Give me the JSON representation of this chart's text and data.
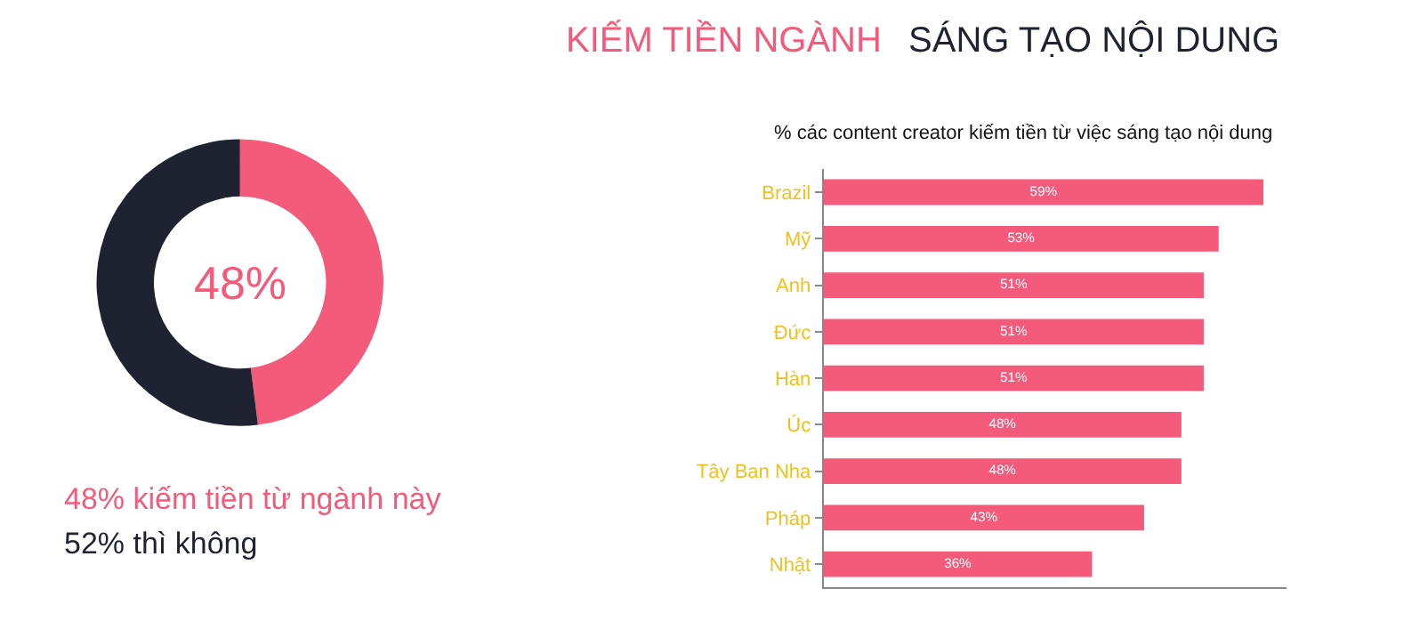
{
  "chart_data": [
    {
      "type": "donut",
      "categories": [
        null,
        null
      ],
      "values": [
        48,
        52
      ],
      "colors": [
        "#f45b7a",
        "#1f2331"
      ],
      "annotations": [
        "KIẾM TIỀN NGÀNH",
        "SÁNG TẠO NỘI DUNG",
        "48%",
        "48% kiếm tiền từ ngành này",
        "52% thì không"
      ]
    },
    {
      "type": "bar",
      "orientation": "horizontal",
      "title": "% các content creator kiếm tiền từ việc sáng tạo nội dung",
      "categories": [
        "Brazil",
        "Mỹ",
        "Anh",
        "Đức",
        "Hàn",
        "Úc",
        "Tây Ban Nha",
        "Pháp",
        "Nhật"
      ],
      "values": [
        59,
        53,
        51,
        51,
        51,
        48,
        48,
        43,
        36
      ],
      "value_labels": [
        "59%",
        "53%",
        "51%",
        "51%",
        "51%",
        "48%",
        "48%",
        "43%",
        "36%"
      ],
      "color": "#f45b7a",
      "tick_labels": "y"
    }
  ]
}
